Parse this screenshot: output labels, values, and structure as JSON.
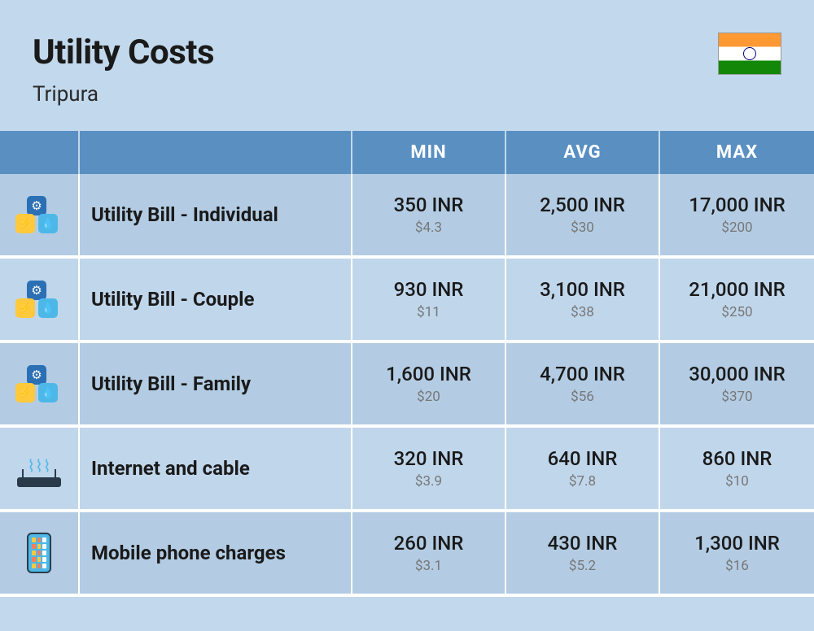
{
  "header": {
    "title": "Utility Costs",
    "subtitle": "Tripura",
    "flag": {
      "top_stripe": "#ff9933",
      "mid_stripe": "#ffffff",
      "bot_stripe": "#138808",
      "wheel_color": "#000080"
    }
  },
  "columns": {
    "min": "MIN",
    "avg": "AVG",
    "max": "MAX"
  },
  "rows": [
    {
      "icon": "utility",
      "label": "Utility Bill - Individual",
      "min_primary": "350 INR",
      "min_secondary": "$4.3",
      "avg_primary": "2,500 INR",
      "avg_secondary": "$30",
      "max_primary": "17,000 INR",
      "max_secondary": "$200"
    },
    {
      "icon": "utility",
      "label": "Utility Bill - Couple",
      "min_primary": "930 INR",
      "min_secondary": "$11",
      "avg_primary": "3,100 INR",
      "avg_secondary": "$38",
      "max_primary": "21,000 INR",
      "max_secondary": "$250"
    },
    {
      "icon": "utility",
      "label": "Utility Bill - Family",
      "min_primary": "1,600 INR",
      "min_secondary": "$20",
      "avg_primary": "4,700 INR",
      "avg_secondary": "$56",
      "max_primary": "30,000 INR",
      "max_secondary": "$370"
    },
    {
      "icon": "router",
      "label": "Internet and cable",
      "min_primary": "320 INR",
      "min_secondary": "$3.9",
      "avg_primary": "640 INR",
      "avg_secondary": "$7.8",
      "max_primary": "860 INR",
      "max_secondary": "$10"
    },
    {
      "icon": "phone",
      "label": "Mobile phone charges",
      "min_primary": "260 INR",
      "min_secondary": "$3.1",
      "avg_primary": "430 INR",
      "avg_secondary": "$5.2",
      "max_primary": "1,300 INR",
      "max_secondary": "$16"
    }
  ],
  "styling": {
    "page_bg": "#c2d9ed",
    "header_bg": "#5a8fc2",
    "row_alt1_bg": "#b3cce3",
    "row_alt2_bg": "#c0d6eb",
    "divider_color": "#ffffff",
    "title_fontsize": 42,
    "subtitle_fontsize": 26,
    "header_fontsize": 22,
    "label_fontsize": 24,
    "primary_fontsize": 24,
    "secondary_fontsize": 17,
    "secondary_color": "#777777",
    "text_color": "#1a1a1a"
  }
}
